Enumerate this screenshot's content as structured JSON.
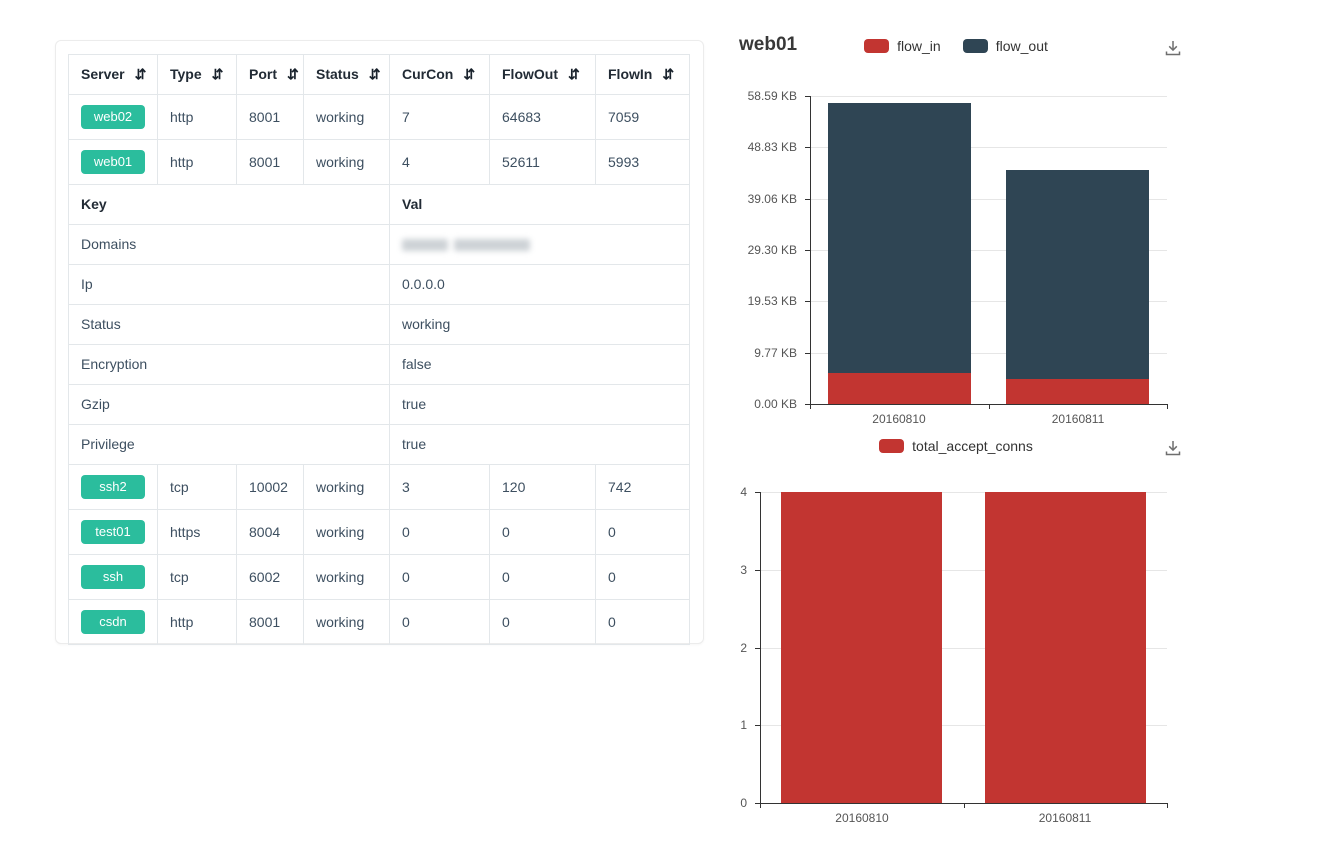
{
  "card": {
    "sort_icon_glyph": "⇵",
    "badge_color": "#2bbd9d",
    "columns": [
      {
        "label": "Server",
        "sortable": true
      },
      {
        "label": "Type",
        "sortable": true
      },
      {
        "label": "Port",
        "sortable": true
      },
      {
        "label": "Status",
        "sortable": true
      },
      {
        "label": "CurCon",
        "sortable": true
      },
      {
        "label": "FlowOut",
        "sortable": true
      },
      {
        "label": "FlowIn",
        "sortable": true
      }
    ],
    "top_rows": [
      {
        "server": "web02",
        "type": "http",
        "port": "8001",
        "status": "working",
        "curcon": "7",
        "flowout": "64683",
        "flowin": "7059"
      },
      {
        "server": "web01",
        "type": "http",
        "port": "8001",
        "status": "working",
        "curcon": "4",
        "flowout": "52611",
        "flowin": "5993"
      }
    ],
    "kv_header": {
      "key": "Key",
      "val": "Val"
    },
    "kv_rows": [
      {
        "key": "Domains",
        "value": "",
        "redacted": true
      },
      {
        "key": "Ip",
        "value": "0.0.0.0"
      },
      {
        "key": "Status",
        "value": "working"
      },
      {
        "key": "Encryption",
        "value": "false"
      },
      {
        "key": "Gzip",
        "value": "true"
      },
      {
        "key": "Privilege",
        "value": "true"
      }
    ],
    "bottom_rows": [
      {
        "server": "ssh2",
        "type": "tcp",
        "port": "10002",
        "status": "working",
        "curcon": "3",
        "flowout": "120",
        "flowin": "742"
      },
      {
        "server": "test01",
        "type": "https",
        "port": "8004",
        "status": "working",
        "curcon": "0",
        "flowout": "0",
        "flowin": "0"
      },
      {
        "server": "ssh",
        "type": "tcp",
        "port": "6002",
        "status": "working",
        "curcon": "0",
        "flowout": "0",
        "flowin": "0"
      },
      {
        "server": "csdn",
        "type": "http",
        "port": "8001",
        "status": "working",
        "curcon": "0",
        "flowout": "0",
        "flowin": "0"
      }
    ]
  },
  "icons": {
    "sort": "sort-arrows-icon",
    "download": "download-icon"
  },
  "chart_data": [
    {
      "type": "bar",
      "stacked": true,
      "title": "web01",
      "categories": [
        "20160810",
        "20160811"
      ],
      "series": [
        {
          "name": "flow_in",
          "color": "#c23531",
          "values": [
            5993,
            4800
          ]
        },
        {
          "name": "flow_out",
          "color": "#2f4554",
          "values": [
            52611,
            40700
          ]
        }
      ],
      "ylim": [
        0,
        60000
      ],
      "yticks": [
        {
          "value": 0,
          "label": "0.00 KB"
        },
        {
          "value": 10000,
          "label": "9.77 KB"
        },
        {
          "value": 20000,
          "label": "19.53 KB"
        },
        {
          "value": 30000,
          "label": "29.30 KB"
        },
        {
          "value": 40000,
          "label": "39.06 KB"
        },
        {
          "value": 50000,
          "label": "48.83 KB"
        },
        {
          "value": 60000,
          "label": "58.59 KB"
        }
      ],
      "ylabel": "",
      "xlabel": "",
      "grid": true,
      "legend_position": "top-center"
    },
    {
      "type": "bar",
      "stacked": false,
      "title": "",
      "categories": [
        "20160810",
        "20160811"
      ],
      "series": [
        {
          "name": "total_accept_conns",
          "color": "#c23531",
          "values": [
            4,
            4
          ]
        }
      ],
      "ylim": [
        0,
        4
      ],
      "yticks": [
        {
          "value": 0,
          "label": "0"
        },
        {
          "value": 1,
          "label": "1"
        },
        {
          "value": 2,
          "label": "2"
        },
        {
          "value": 3,
          "label": "3"
        },
        {
          "value": 4,
          "label": "4"
        }
      ],
      "ylabel": "",
      "xlabel": "",
      "grid": true,
      "legend_position": "top-center"
    }
  ]
}
